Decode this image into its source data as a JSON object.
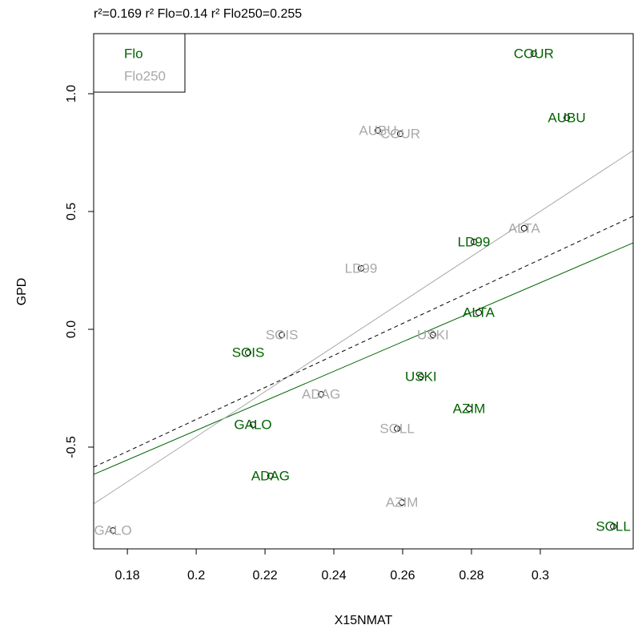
{
  "chart_data": {
    "type": "scatter",
    "title": "r²=0.169  r² Flo=0.14  r² Flo250=0.255",
    "x_label": "X15NMAT",
    "y_label": "GPD",
    "xlim": [
      0.1702,
      0.327
    ],
    "ylim": [
      -0.932,
      1.255
    ],
    "xticks": [
      0.18,
      0.2,
      0.22,
      0.24,
      0.26,
      0.28,
      0.3
    ],
    "yticks": [
      -0.5,
      {
        "value": 0,
        "label": "0.0"
      },
      0.5,
      {
        "value": 1,
        "label": "1.0"
      }
    ],
    "legend_position": "top-left",
    "series": [
      {
        "name": "Flo",
        "color": "#006400",
        "labels": [
          "COUR",
          "AUBU",
          "LD99",
          "ALTA",
          "SOIS",
          "USKI",
          "AZIM",
          "GALO",
          "ADAG",
          "SOLL"
        ],
        "x": [
          0.2981,
          0.3077,
          0.2807,
          0.2821,
          0.2151,
          0.2653,
          0.2793,
          0.2165,
          0.2216,
          0.3212
        ],
        "values": [
          1.17,
          0.898,
          0.371,
          0.071,
          -0.099,
          -0.201,
          -0.337,
          -0.405,
          -0.622,
          -0.837
        ]
      },
      {
        "name": "Flo250",
        "color": "#a9a9a9",
        "labels": [
          "AUBU",
          "COUR",
          "ALTA",
          "LD99",
          "SOIS",
          "USKI",
          "ADAG",
          "SOLL",
          "AZIM",
          "GALO"
        ],
        "x": [
          0.2528,
          0.2593,
          0.2953,
          0.2479,
          0.2249,
          0.2688,
          0.2363,
          0.2584,
          0.2598,
          0.1758
        ],
        "values": [
          0.844,
          0.83,
          0.429,
          0.259,
          -0.024,
          -0.024,
          -0.276,
          -0.422,
          -0.735,
          -0.854
        ]
      }
    ],
    "fit_lines": [
      {
        "color": "#006400",
        "dashed": false,
        "x": [
          0.1702,
          0.327
        ],
        "y": [
          -0.616,
          0.367
        ]
      },
      {
        "color": "#a9a9a9",
        "dashed": false,
        "x": [
          0.1702,
          0.327
        ],
        "y": [
          -0.741,
          0.759
        ]
      },
      {
        "color": "#000000",
        "dashed": true,
        "x": [
          0.1702,
          0.327
        ],
        "y": [
          -0.585,
          0.48
        ]
      }
    ]
  }
}
